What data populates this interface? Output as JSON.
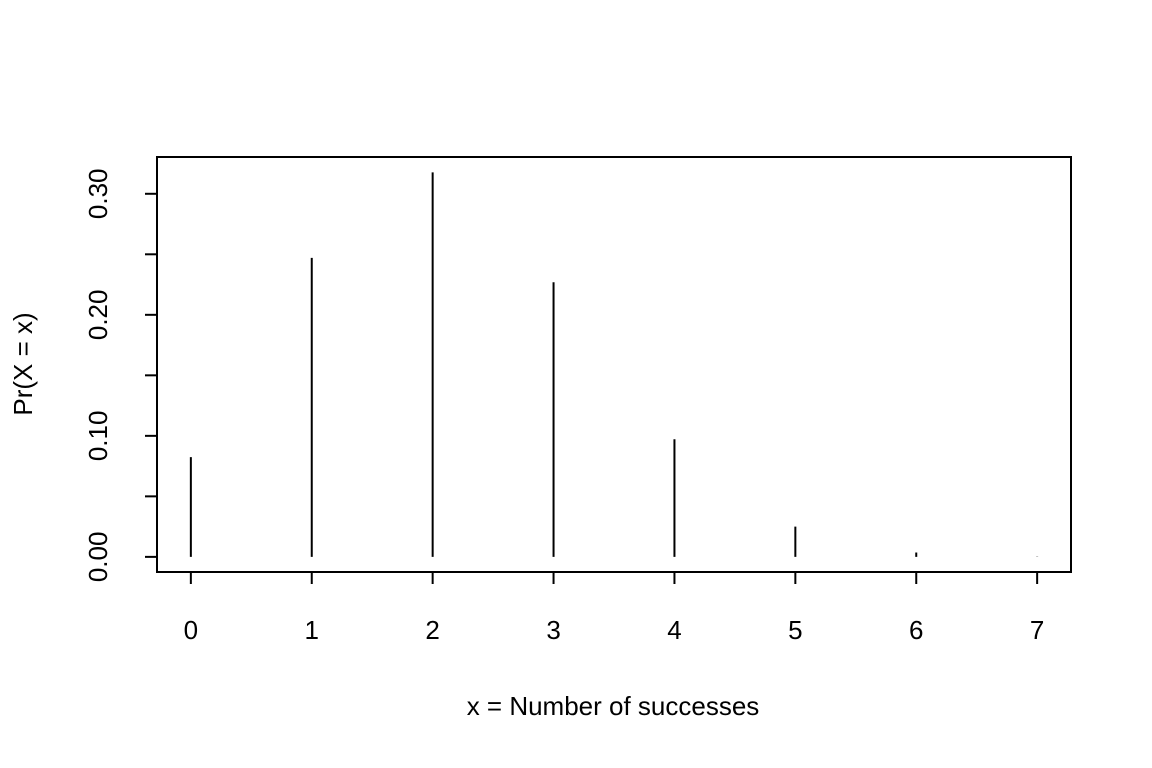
{
  "chart_data": {
    "type": "stem",
    "x_label": "x = Number of successes",
    "y_label": "Pr(X = x)",
    "x": [
      0,
      1,
      2,
      3,
      4,
      5,
      6,
      7
    ],
    "values": [
      0.0824,
      0.2471,
      0.3177,
      0.2269,
      0.0972,
      0.025,
      0.0036,
      0.0002
    ],
    "color": "#000000",
    "xlim": [
      -0.28,
      7.28
    ],
    "ylim": [
      -0.0125,
      0.3304
    ],
    "xticks": [
      0,
      1,
      2,
      3,
      4,
      5,
      6,
      7
    ],
    "yticks": [
      {
        "value": 0,
        "label": "0.00"
      },
      {
        "value": 0.05,
        "label": null
      },
      {
        "value": 0.1,
        "label": "0.10"
      },
      {
        "value": 0.15,
        "label": null
      },
      {
        "value": 0.2,
        "label": "0.20"
      },
      {
        "value": 0.25,
        "label": null
      },
      {
        "value": 0.3,
        "label": "0.30"
      }
    ]
  }
}
